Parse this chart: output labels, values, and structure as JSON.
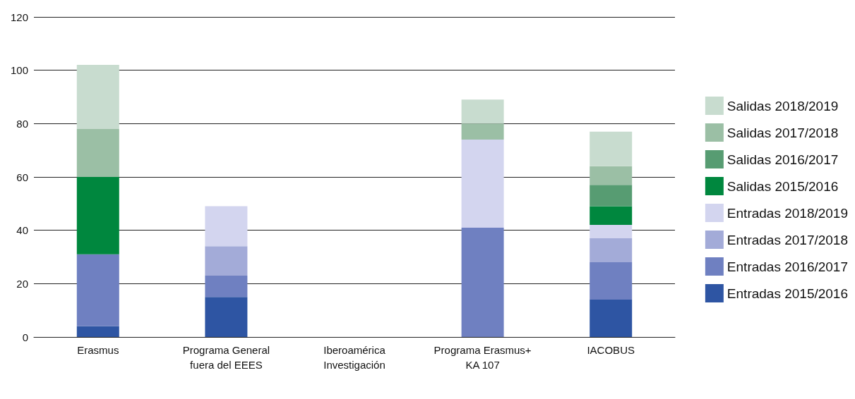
{
  "chart_data": {
    "type": "bar",
    "stacked": true,
    "categories": [
      "Erasmus",
      "Programa General\nfuera del EEES",
      "Iberoamérica\nInvestigación",
      "Programa Erasmus+\nKA 107",
      "IACOBUS"
    ],
    "series": [
      {
        "name": "Entradas 2015/2016",
        "color": "#2e55a3",
        "values": [
          4,
          15,
          0,
          0,
          14
        ]
      },
      {
        "name": "Entradas 2016/2017",
        "color": "#6f80c1",
        "values": [
          27,
          8,
          0,
          41,
          14
        ]
      },
      {
        "name": "Entradas 2017/2018",
        "color": "#a3abd8",
        "values": [
          0,
          11,
          0,
          0,
          9
        ]
      },
      {
        "name": "Entradas 2018/2019",
        "color": "#d3d5ef",
        "values": [
          0,
          15,
          0,
          33,
          5
        ]
      },
      {
        "name": "Salidas 2015/2016",
        "color": "#00873e",
        "values": [
          29,
          0,
          0,
          0,
          7
        ]
      },
      {
        "name": "Salidas 2016/2017",
        "color": "#579c72",
        "values": [
          0,
          0,
          0,
          0,
          8
        ]
      },
      {
        "name": "Salidas 2017/2018",
        "color": "#9bbfa5",
        "values": [
          18,
          0,
          0,
          6,
          7
        ]
      },
      {
        "name": "Salidas 2018/2019",
        "color": "#c8dccf",
        "values": [
          24,
          0,
          0,
          9,
          13
        ]
      }
    ],
    "ylim": [
      0,
      120
    ],
    "yticks": [
      0,
      20,
      40,
      60,
      80,
      100,
      120
    ],
    "grid": "y",
    "legend": "right"
  }
}
